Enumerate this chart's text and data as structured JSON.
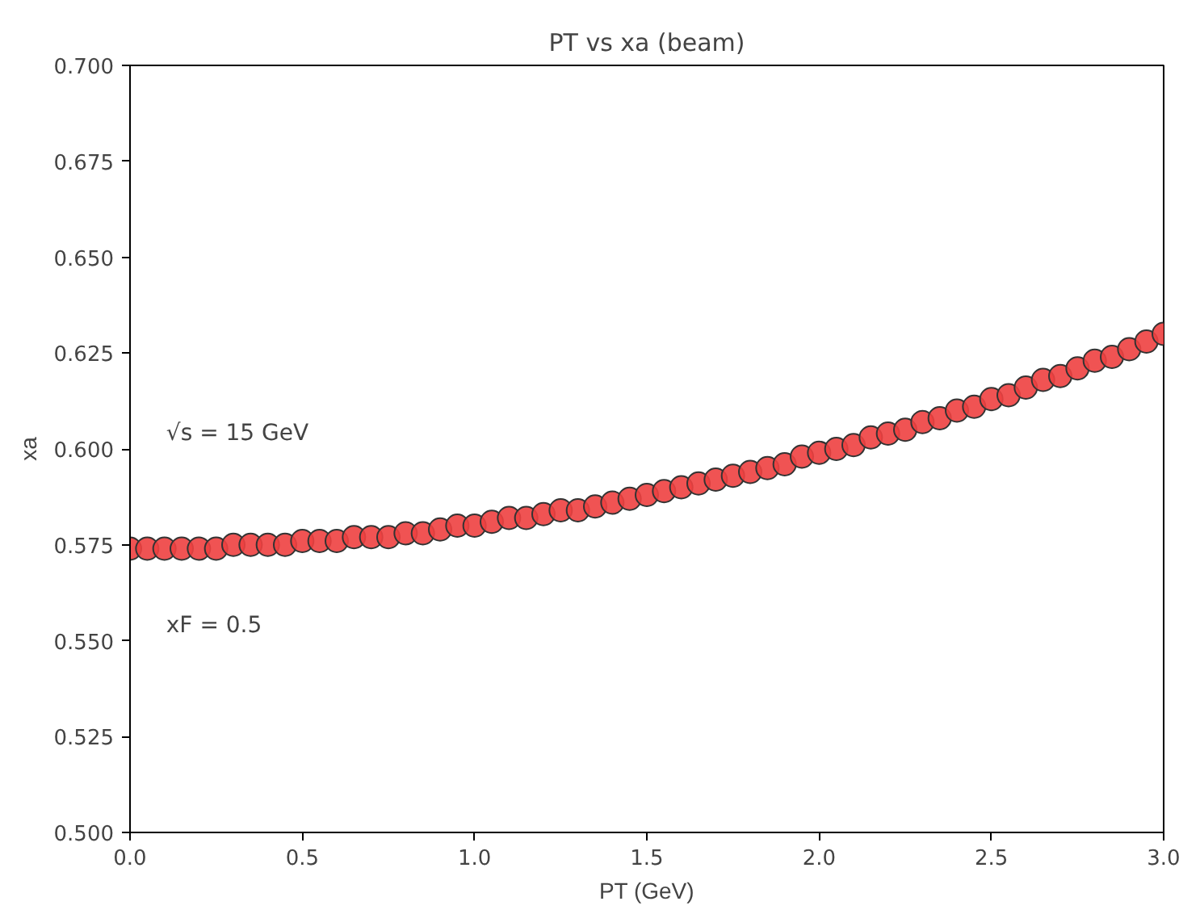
{
  "chart_data": {
    "type": "scatter",
    "title": "PT vs xa (beam)",
    "xlabel": "PT (GeV)",
    "ylabel": "xa",
    "annotations": [
      "√s = 15 GeV",
      "xF = 0.5"
    ],
    "x": [
      0,
      0.05,
      0.1,
      0.15,
      0.2,
      0.25,
      0.3,
      0.35,
      0.4,
      0.45,
      0.5,
      0.55,
      0.6,
      0.65,
      0.7,
      0.75,
      0.8,
      0.85,
      0.9,
      0.95,
      1.0,
      1.05,
      1.1,
      1.15,
      1.2,
      1.25,
      1.3,
      1.35,
      1.4,
      1.45,
      1.5,
      1.55,
      1.6,
      1.65,
      1.7,
      1.75,
      1.8,
      1.85,
      1.9,
      1.95,
      2.0,
      2.05,
      2.1,
      2.15,
      2.2,
      2.25,
      2.3,
      2.35,
      2.4,
      2.45,
      2.5,
      2.55,
      2.6,
      2.65,
      2.7,
      2.75,
      2.8,
      2.85,
      2.9,
      2.95,
      3.0
    ],
    "series": [
      {
        "color": "#ee4040",
        "values": [
          0.574,
          0.574,
          0.574,
          0.574,
          0.574,
          0.574,
          0.575,
          0.575,
          0.575,
          0.575,
          0.576,
          0.576,
          0.576,
          0.577,
          0.577,
          0.577,
          0.578,
          0.578,
          0.579,
          0.58,
          0.58,
          0.581,
          0.582,
          0.582,
          0.583,
          0.584,
          0.584,
          0.585,
          0.586,
          0.587,
          0.588,
          0.589,
          0.59,
          0.591,
          0.592,
          0.593,
          0.594,
          0.595,
          0.596,
          0.598,
          0.599,
          0.6,
          0.601,
          0.603,
          0.604,
          0.605,
          0.607,
          0.608,
          0.61,
          0.611,
          0.613,
          0.614,
          0.616,
          0.618,
          0.619,
          0.621,
          0.623,
          0.624,
          0.626,
          0.628,
          0.63
        ]
      }
    ],
    "xlim": [
      0,
      3
    ],
    "ylim": [
      0.5,
      0.7
    ],
    "xticks": [
      {
        "value": 0,
        "label": "0.0"
      },
      0.5,
      {
        "value": 1,
        "label": "1.0"
      },
      1.5,
      {
        "value": 2,
        "label": "2.0"
      },
      2.5,
      {
        "value": 3,
        "label": "3.0"
      }
    ],
    "yticks": [
      {
        "value": 0.5,
        "label": "0.500"
      },
      0.525,
      {
        "value": 0.55,
        "label": "0.550"
      },
      0.575,
      {
        "value": 0.6,
        "label": "0.600"
      },
      0.625,
      {
        "value": 0.65,
        "label": "0.650"
      },
      0.675,
      {
        "value": 0.7,
        "label": "0.700"
      }
    ],
    "grid": false,
    "marker": "circle"
  }
}
